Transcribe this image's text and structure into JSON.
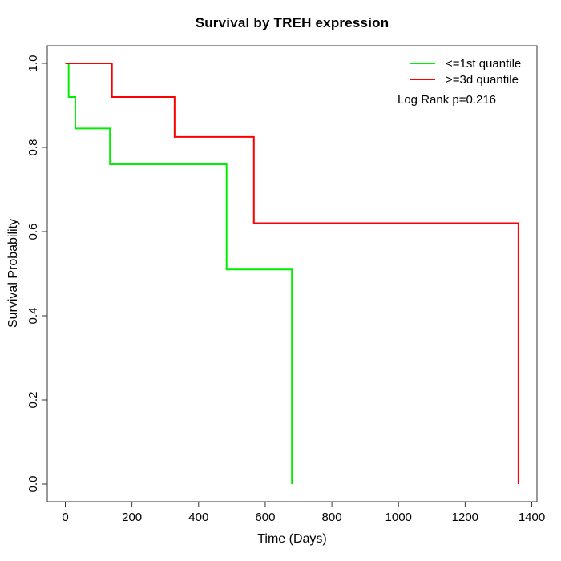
{
  "figure": {
    "title": "Survival by TREH expression",
    "xlabel": "Time (Days)",
    "ylabel": "Survival Probability",
    "annotation": "Log Rank p=0.216"
  },
  "legend": {
    "items": [
      {
        "label": "<=1st quantile",
        "color": "#00ee00"
      },
      {
        "label": ">=3d quantile",
        "color": "#ff0000"
      }
    ]
  },
  "chart_data": {
    "type": "line",
    "subtype": "kaplan-meier-step",
    "title": "Survival by TREH expression",
    "xlabel": "Time (Days)",
    "ylabel": "Survival Probability",
    "xlim": [
      0,
      1400
    ],
    "ylim": [
      0.0,
      1.0
    ],
    "x_ticks": [
      "0",
      "200",
      "400",
      "600",
      "800",
      "1000",
      "1200",
      "1400"
    ],
    "y_ticks": [
      "0.0",
      "0.2",
      "0.4",
      "0.6",
      "0.8",
      "1.0"
    ],
    "grid": false,
    "legend_position": "top-right",
    "annotation": "Log Rank p=0.216",
    "series": [
      {
        "name": "<=1st quantile",
        "color": "#00ee00",
        "steps": [
          [
            0,
            1.0
          ],
          [
            10,
            0.92
          ],
          [
            30,
            0.845
          ],
          [
            134,
            0.76
          ],
          [
            484,
            0.51
          ],
          [
            680,
            0.0
          ]
        ]
      },
      {
        "name": ">=3d quantile",
        "color": "#ff0000",
        "steps": [
          [
            0,
            1.0
          ],
          [
            140,
            0.92
          ],
          [
            328,
            0.825
          ],
          [
            566,
            0.62
          ],
          [
            1360,
            0.0
          ]
        ]
      }
    ]
  }
}
